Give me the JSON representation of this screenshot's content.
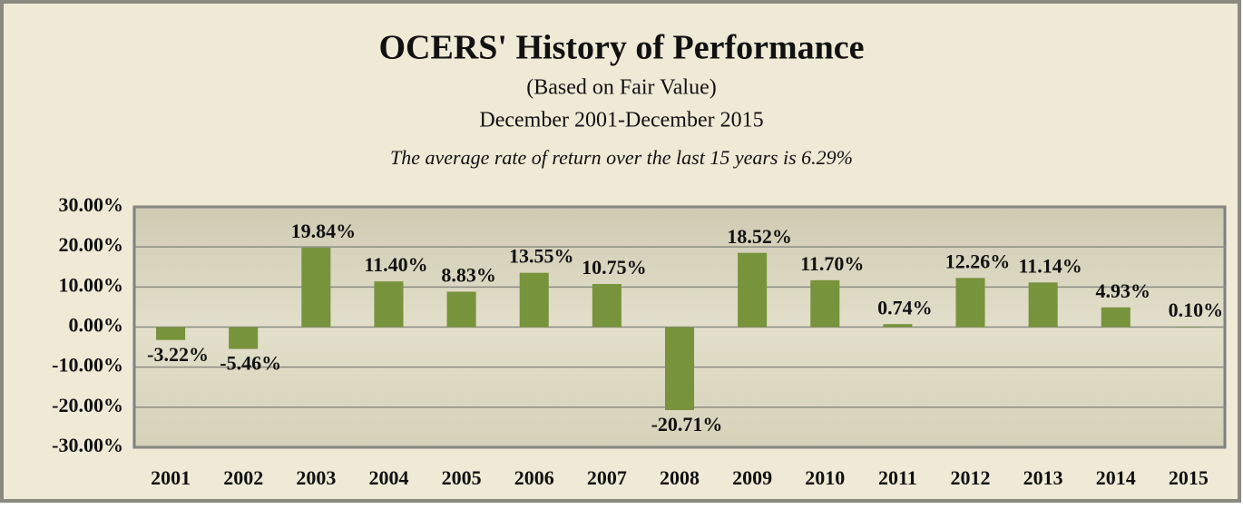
{
  "chart_data": {
    "type": "bar",
    "title": "OCERS' History of Performance",
    "subtitle": [
      "(Based on Fair Value)",
      "December 2001-December 2015"
    ],
    "annotation": "The average rate of return over the last 15 years is 6.29%",
    "categories": [
      "2001",
      "2002",
      "2003",
      "2004",
      "2005",
      "2006",
      "2007",
      "2008",
      "2009",
      "2010",
      "2011",
      "2012",
      "2013",
      "2014",
      "2015"
    ],
    "values": [
      -3.22,
      -5.46,
      19.84,
      11.4,
      8.83,
      13.55,
      10.75,
      -20.71,
      18.52,
      11.7,
      0.74,
      12.26,
      11.14,
      4.93,
      0.1
    ],
    "value_labels": [
      "-3.22%",
      "-5.46%",
      "19.84%",
      "11.40%",
      "8.83%",
      "13.55%",
      "10.75%",
      "-20.71%",
      "18.52%",
      "11.70%",
      "0.74%",
      "12.26%",
      "11.14%",
      "4.93%",
      "0.10%"
    ],
    "color": "#77933c",
    "ylim": [
      -30,
      30
    ],
    "yticks": [
      {
        "value": -30,
        "label": "-30.00%"
      },
      {
        "value": -20,
        "label": "-20.00%"
      },
      {
        "value": -10,
        "label": "-10.00%"
      },
      {
        "value": 0,
        "label": "0.00%"
      },
      {
        "value": 10,
        "label": "10.00%"
      },
      {
        "value": 20,
        "label": "20.00%"
      },
      {
        "value": 30,
        "label": "30.00%"
      }
    ],
    "grid": true
  }
}
